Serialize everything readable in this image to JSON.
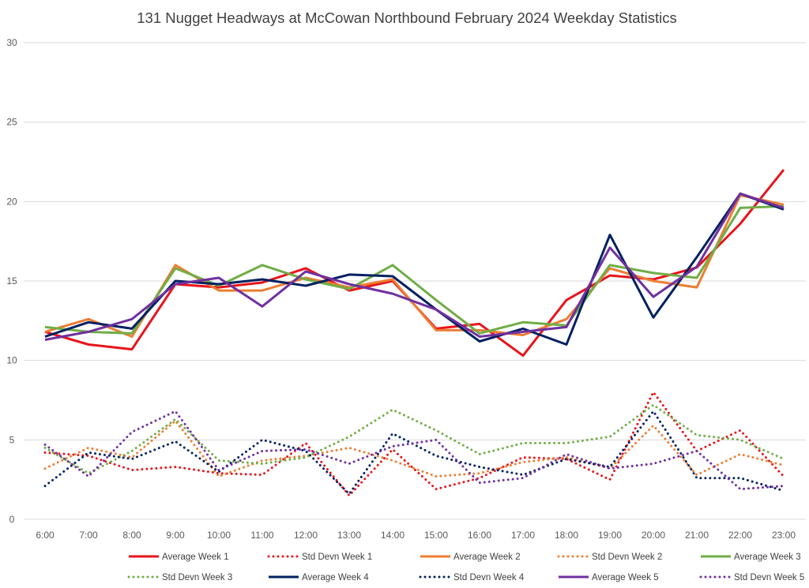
{
  "chart_data": {
    "type": "line",
    "title": "131 Nugget Headways at McCowan Northbound February 2024 Weekday Statistics",
    "xlabel": "",
    "ylabel": "",
    "ylim": [
      0,
      30
    ],
    "yticks": [
      0,
      5,
      10,
      15,
      20,
      25,
      30
    ],
    "grid": true,
    "legend_position": "bottom",
    "categories": [
      "6:00",
      "7:00",
      "8:00",
      "9:00",
      "10:00",
      "11:00",
      "12:00",
      "13:00",
      "14:00",
      "15:00",
      "16:00",
      "17:00",
      "18:00",
      "19:00",
      "20:00",
      "21:00",
      "22:00",
      "23:00"
    ],
    "series": [
      {
        "name": "Average Week 1",
        "color": "#e8141a",
        "style": "solid",
        "values": [
          11.8,
          11.0,
          10.7,
          14.8,
          14.6,
          14.9,
          15.8,
          14.4,
          15.0,
          12.0,
          12.3,
          10.3,
          13.8,
          15.35,
          15.1,
          15.85,
          18.6,
          22.0
        ]
      },
      {
        "name": "Std Devn Week 1",
        "color": "#e8141a",
        "style": "dotted",
        "values": [
          4.2,
          4.0,
          3.1,
          3.3,
          2.9,
          2.8,
          4.8,
          1.5,
          4.4,
          1.9,
          2.6,
          3.9,
          3.8,
          2.5,
          8.0,
          4.3,
          5.6,
          2.7
        ]
      },
      {
        "name": "Average Week 2",
        "color": "#ed7d31",
        "style": "solid",
        "values": [
          11.8,
          12.6,
          11.5,
          16.0,
          14.4,
          14.4,
          15.2,
          14.6,
          15.1,
          11.9,
          11.9,
          11.6,
          12.6,
          15.8,
          15.0,
          14.6,
          20.4,
          19.8
        ]
      },
      {
        "name": "Std Devn Week 2",
        "color": "#ed7d31",
        "style": "dotted",
        "values": [
          3.2,
          4.5,
          3.9,
          6.2,
          2.7,
          3.7,
          4.0,
          4.5,
          3.7,
          2.7,
          2.9,
          3.6,
          3.9,
          3.2,
          5.9,
          2.8,
          4.1,
          3.4
        ]
      },
      {
        "name": "Average Week 3",
        "color": "#70ad47",
        "style": "solid",
        "values": [
          12.1,
          11.8,
          11.7,
          15.8,
          14.7,
          16.0,
          15.1,
          14.5,
          16.0,
          13.8,
          11.7,
          12.4,
          12.2,
          16.0,
          15.5,
          15.2,
          19.6,
          19.7
        ]
      },
      {
        "name": "Std Devn Week 3",
        "color": "#70ad47",
        "style": "dotted",
        "values": [
          4.5,
          2.9,
          4.3,
          6.3,
          3.7,
          3.5,
          3.9,
          5.2,
          6.9,
          5.6,
          4.1,
          4.8,
          4.8,
          5.2,
          7.2,
          5.3,
          5.0,
          3.8
        ]
      },
      {
        "name": "Average Week 4",
        "color": "#002060",
        "style": "solid",
        "values": [
          11.5,
          12.4,
          12.0,
          15.0,
          14.8,
          15.1,
          14.7,
          15.4,
          15.3,
          13.2,
          11.2,
          12.0,
          11.0,
          17.9,
          12.7,
          16.5,
          20.5,
          19.5
        ]
      },
      {
        "name": "Std Devn Week 4",
        "color": "#002060",
        "style": "dotted",
        "values": [
          2.1,
          4.2,
          3.8,
          4.9,
          3.0,
          5.0,
          4.3,
          1.6,
          5.4,
          4.0,
          3.3,
          2.8,
          3.8,
          3.3,
          6.8,
          2.6,
          2.6,
          1.8
        ]
      },
      {
        "name": "Average Week 5",
        "color": "#7030a0",
        "style": "solid",
        "values": [
          11.3,
          11.8,
          12.6,
          14.8,
          15.2,
          13.4,
          15.6,
          14.8,
          14.2,
          13.2,
          11.5,
          11.8,
          12.1,
          17.1,
          14.0,
          15.9,
          20.5,
          19.6
        ]
      },
      {
        "name": "Std Devn Week 5",
        "color": "#7030a0",
        "style": "dotted",
        "values": [
          4.7,
          2.7,
          5.5,
          6.8,
          3.1,
          4.3,
          4.4,
          3.5,
          4.6,
          5.0,
          2.3,
          2.6,
          4.1,
          3.2,
          3.5,
          4.3,
          1.9,
          2.1
        ]
      }
    ]
  }
}
